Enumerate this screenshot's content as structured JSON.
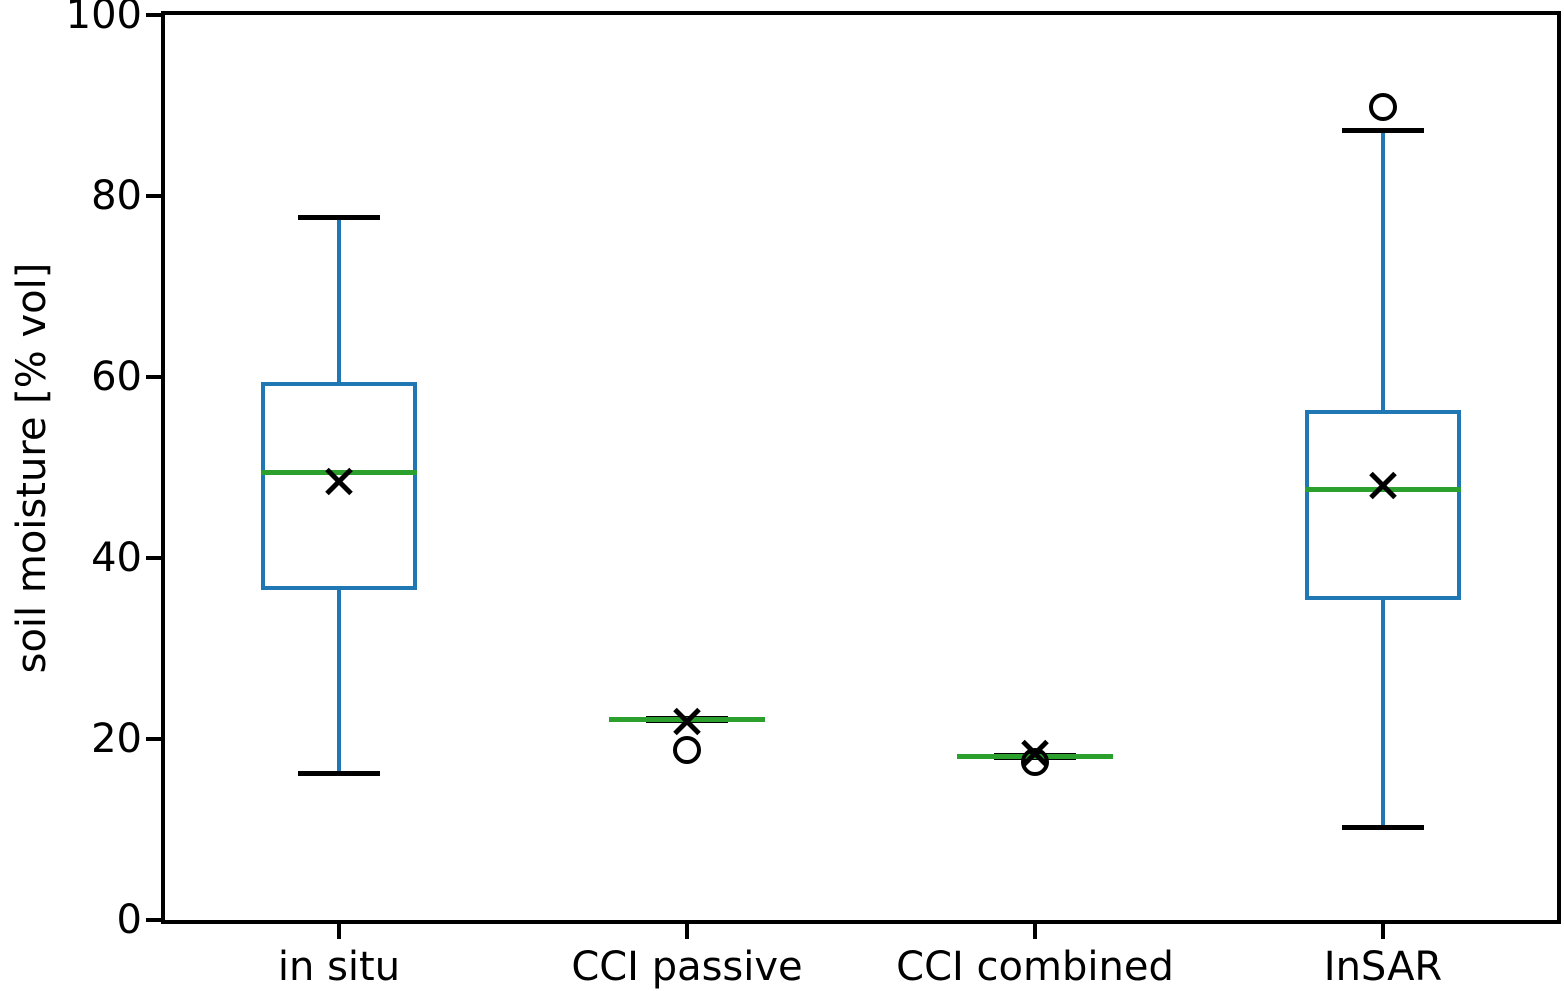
{
  "figure": {
    "background": "#ffffff"
  },
  "chart_data": {
    "type": "boxplot",
    "title": "",
    "xlabel": "",
    "ylabel": "soil moisture [% vol]",
    "ylim": [
      0,
      100
    ],
    "yticks": [
      0,
      20,
      40,
      60,
      80,
      100
    ],
    "categories": [
      "in situ",
      "CCI passive",
      "CCI combined",
      "InSAR"
    ],
    "grid": false,
    "colors": {
      "box_edge": "#1f77b4",
      "median": "#2ca02c",
      "whisker_cap": "#000000",
      "marker": "#000000",
      "spine": "#000000",
      "background": "#ffffff"
    },
    "series": [
      {
        "label": "in situ",
        "whisker_low": 16.2,
        "q1": 36.5,
        "median": 49.4,
        "q3": 59.4,
        "whisker_high": 77.6,
        "mean": 48.4,
        "outliers": []
      },
      {
        "label": "CCI passive",
        "whisker_low": 22.2,
        "q1": 22.2,
        "median": 22.2,
        "q3": 22.2,
        "whisker_high": 22.2,
        "mean": 21.9,
        "outliers": [
          18.8
        ]
      },
      {
        "label": "CCI combined",
        "whisker_low": 18.1,
        "q1": 18.1,
        "median": 18.1,
        "q3": 18.1,
        "whisker_high": 18.1,
        "mean": 18.4,
        "outliers": [
          17.5
        ]
      },
      {
        "label": "InSAR",
        "whisker_low": 10.2,
        "q1": 35.4,
        "median": 47.6,
        "q3": 56.4,
        "whisker_high": 87.2,
        "mean": 48.0,
        "outliers": [
          89.8
        ]
      }
    ]
  }
}
